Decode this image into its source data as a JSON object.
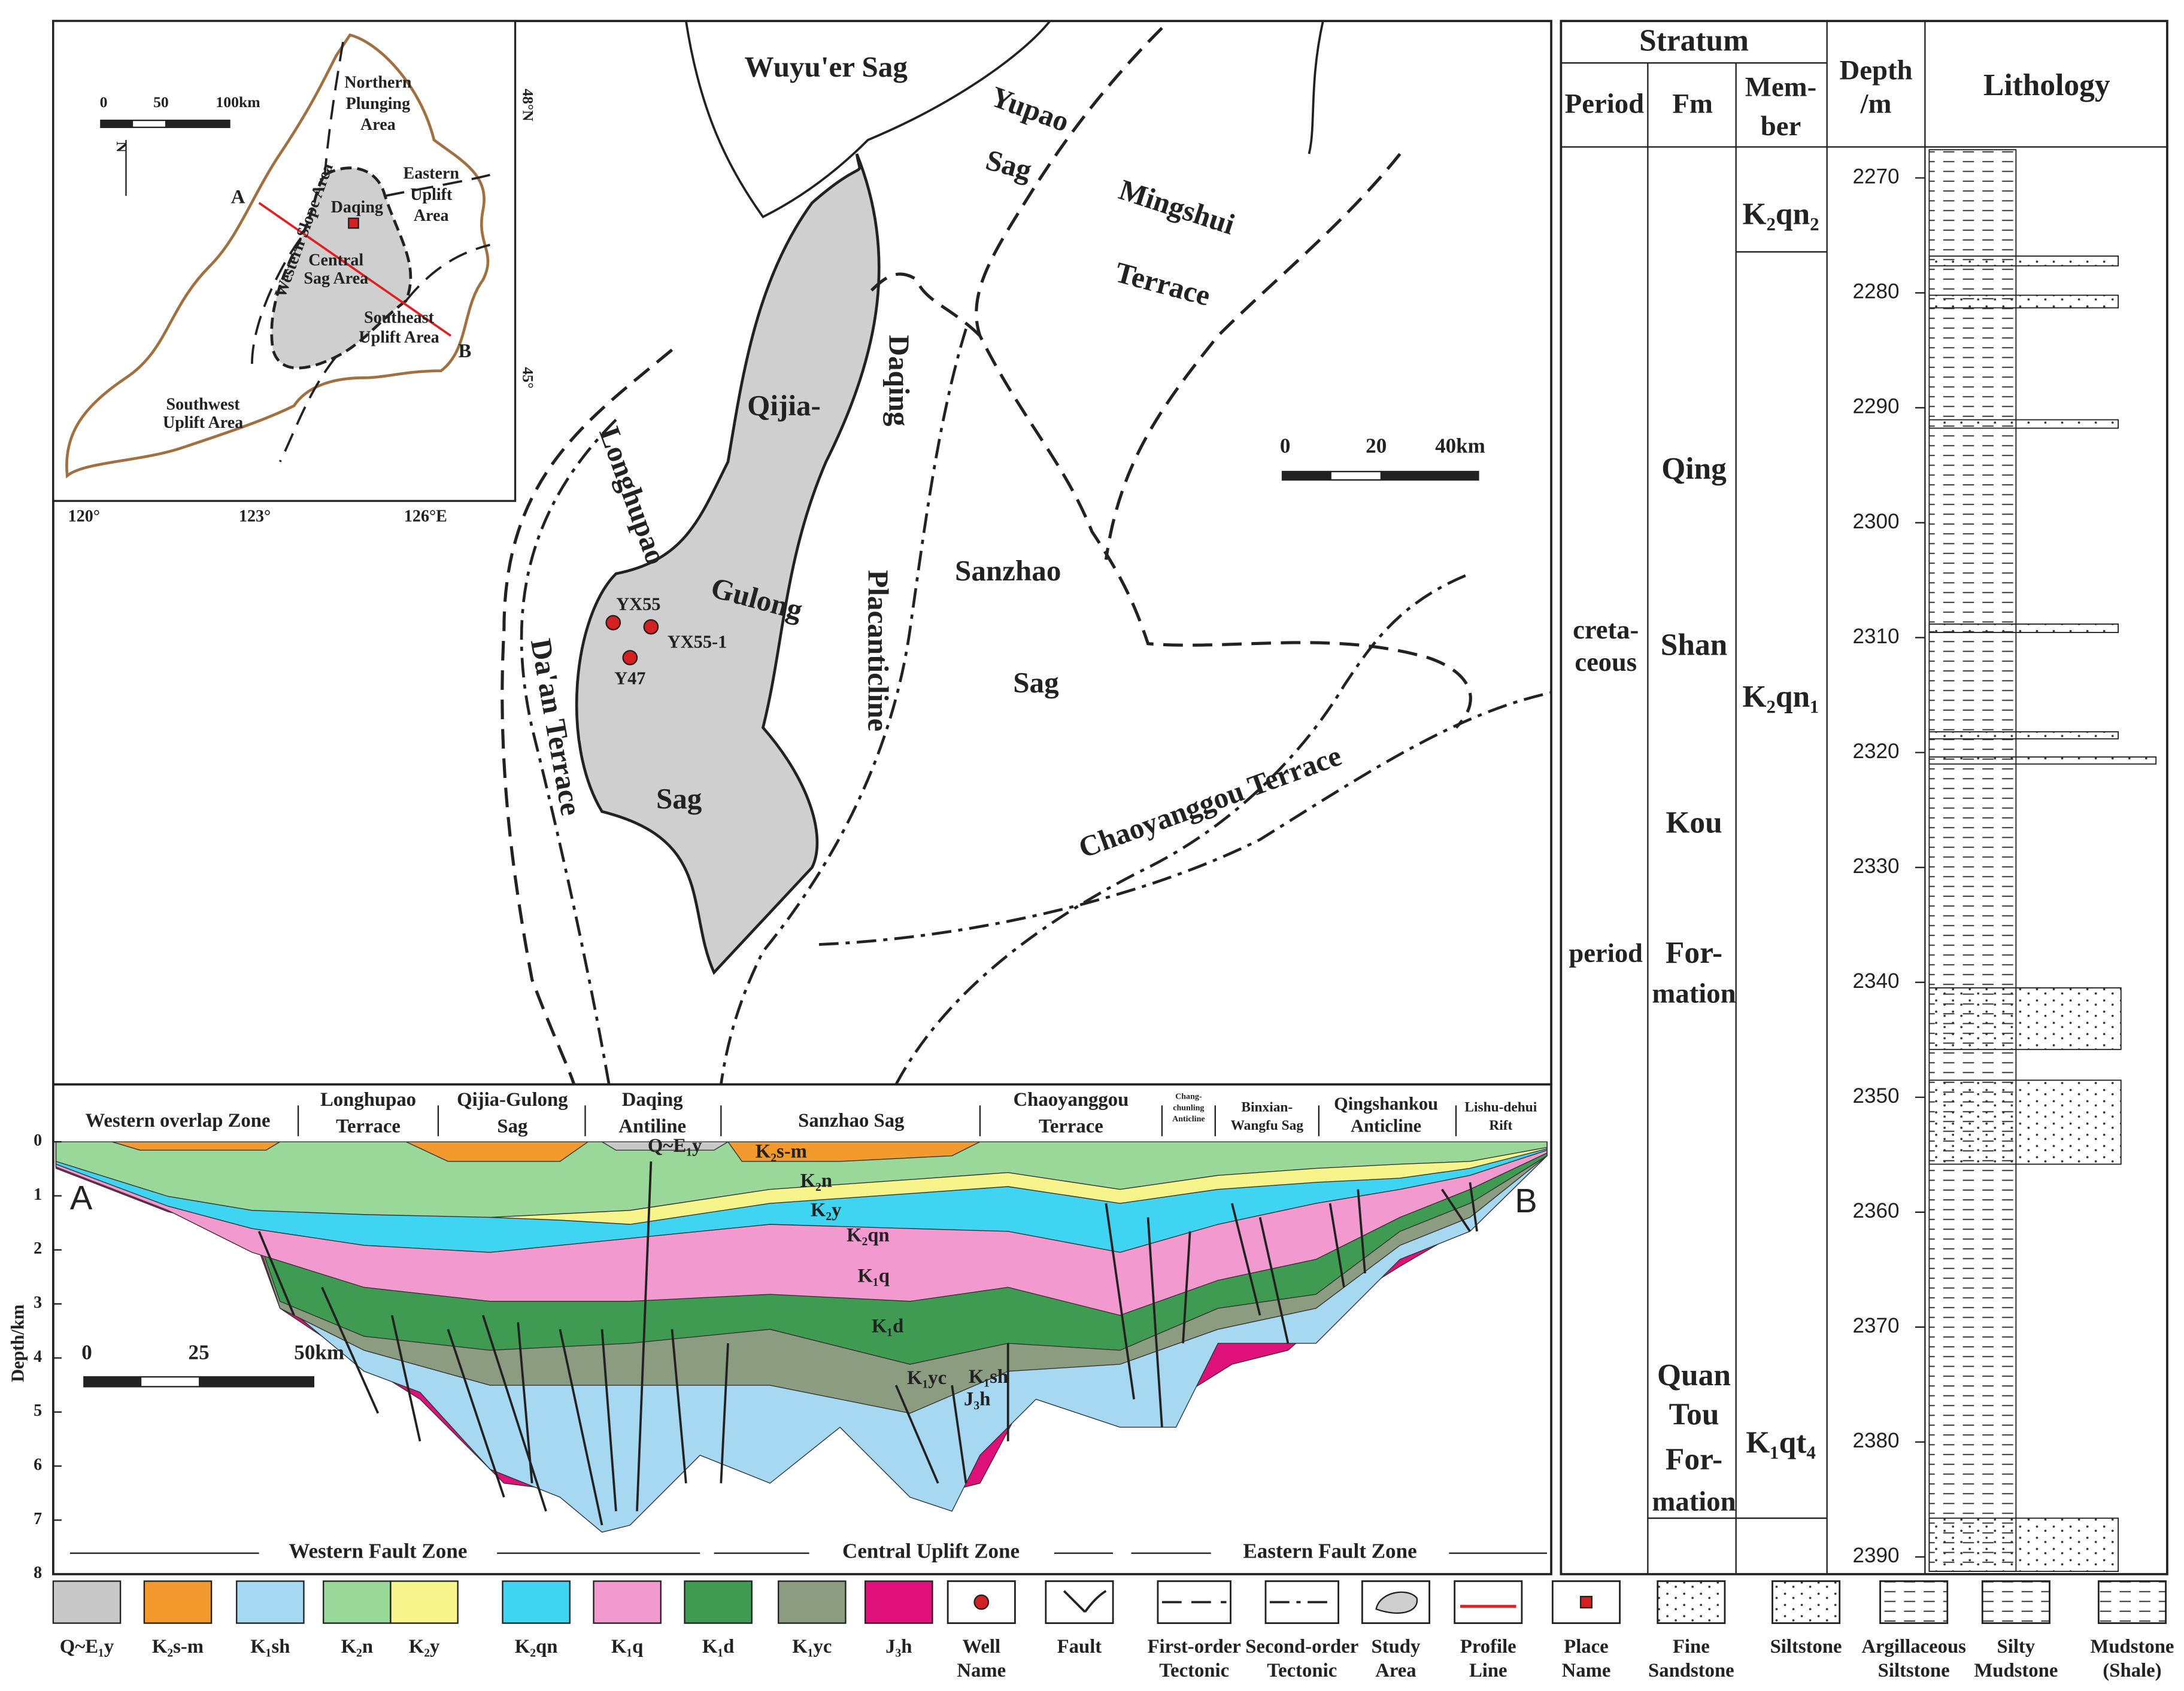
{
  "inset": {
    "scale": [
      "0",
      "50",
      "100km"
    ],
    "north": "N",
    "lat": [
      "48°N",
      "45°"
    ],
    "lon": [
      "120°",
      "123°",
      "126°E"
    ],
    "regions": [
      {
        "lines": [
          "Northern",
          "Plunging",
          "Area"
        ]
      },
      {
        "lines": [
          "Eastern",
          "Uplift",
          "Area"
        ]
      },
      {
        "lines": [
          "Western Slope Area"
        ]
      },
      {
        "lines": [
          "Daqing"
        ]
      },
      {
        "lines": [
          "Central",
          "Sag Area"
        ]
      },
      {
        "lines": [
          "Southeast",
          "Uplift Area"
        ]
      },
      {
        "lines": [
          "Southwest",
          "Uplift Area"
        ]
      }
    ],
    "profile_ends": [
      "A",
      "B"
    ]
  },
  "map": {
    "labels": [
      "Wuyu'er Sag",
      "Yupao",
      "Sag",
      "Mingshui",
      "Terrace",
      "Qijia-",
      "Daqing",
      "Placanticline",
      "Longhupao",
      "Gulong",
      "Sanzhao",
      "Sag",
      "Da'an Terrace",
      "Sag",
      "Chaoyanggou Terrace"
    ],
    "wells": [
      "YX55",
      "YX55-1",
      "Y47"
    ],
    "scale": [
      "0",
      "20",
      "40km"
    ]
  },
  "section": {
    "zones": [
      {
        "lines": [
          "Western overlap Zone"
        ]
      },
      {
        "lines": [
          "Longhupao",
          "Terrace"
        ]
      },
      {
        "lines": [
          "Qijia-Gulong",
          "Sag"
        ]
      },
      {
        "lines": [
          "Daqing",
          "Antiline"
        ]
      },
      {
        "lines": [
          "Sanzhao Sag"
        ]
      },
      {
        "lines": [
          "Chaoyanggou",
          "Terrace"
        ]
      },
      {
        "lines": [
          "Chang-",
          "chunling",
          "Anticline"
        ]
      },
      {
        "lines": [
          "Binxian-",
          "Wangfu Sag"
        ]
      },
      {
        "lines": [
          "Qingshankou",
          "Anticline"
        ]
      },
      {
        "lines": [
          "Lishu-dehui",
          "Rift"
        ]
      }
    ],
    "units": [
      "Q~E₁y",
      "K₂s-m",
      "K₂n",
      "K₂y",
      "K₂qn",
      "K₁q",
      "K₁d",
      "K₁yc",
      "K₁sh",
      "J₃h"
    ],
    "ends": [
      "A",
      "B"
    ],
    "y_label": "Depth/km",
    "ylim": [
      0,
      8
    ],
    "yticks": [
      0,
      1,
      2,
      3,
      4,
      5,
      6,
      7,
      8
    ],
    "scale": [
      "0",
      "25",
      "50km"
    ],
    "fault_zones": [
      "Western Fault Zone",
      "Central Uplift Zone",
      "Eastern Fault Zone"
    ]
  },
  "legend": [
    {
      "lines": [
        "Q~E₁y"
      ],
      "color": "#c8c8c8"
    },
    {
      "lines": [
        "K₂s-m"
      ],
      "color": "#f39a2e"
    },
    {
      "lines": [
        "K₁sh"
      ],
      "color": "#a6d8f2"
    },
    {
      "lines": [
        "K₂n"
      ],
      "color": "#9ad89a"
    },
    {
      "lines": [
        "K₂y"
      ],
      "color": "#f7f48c"
    },
    {
      "lines": [
        "K₂qn"
      ],
      "color": "#3fd5f2"
    },
    {
      "lines": [
        "K₁q"
      ],
      "color": "#f29ad0"
    },
    {
      "lines": [
        "K₁d"
      ],
      "color": "#3f9a52"
    },
    {
      "lines": [
        "K₁yc"
      ],
      "color": "#8c9c80"
    },
    {
      "lines": [
        "J₃h"
      ],
      "color": "#e0107a"
    },
    {
      "lines": [
        "Well",
        "Name"
      ]
    },
    {
      "lines": [
        "Fault"
      ]
    },
    {
      "lines": [
        "First-order",
        "Tectonic"
      ]
    },
    {
      "lines": [
        "Second-order",
        "Tectonic"
      ]
    },
    {
      "lines": [
        "Study",
        "Area"
      ]
    },
    {
      "lines": [
        "Profile",
        "Line"
      ]
    },
    {
      "lines": [
        "Place",
        "Name"
      ]
    },
    {
      "lines": [
        "Fine",
        "Sandstone"
      ]
    },
    {
      "lines": [
        "Siltstone"
      ]
    },
    {
      "lines": [
        "Argillaceous",
        "Siltstone"
      ]
    },
    {
      "lines": [
        "Silty",
        "Mudstone"
      ]
    },
    {
      "lines": [
        "Mudstone",
        "(Shale)"
      ]
    }
  ],
  "column": {
    "header": {
      "stratum": "Stratum",
      "period": "Period",
      "fm": "Fm",
      "member": [
        "Mem-",
        "ber"
      ],
      "depth": [
        "Depth",
        "/m"
      ],
      "lithology": "Lithology"
    },
    "period": [
      "creta-",
      "ceous",
      "period"
    ],
    "formations": [
      [
        "Qing",
        "Shan",
        "Kou",
        "For-",
        "mation"
      ],
      [
        "Quan",
        "Tou",
        "For-",
        "mation"
      ]
    ],
    "members": [
      "K₂qn₂",
      "K₂qn₁",
      "K₁qt₄"
    ],
    "ylim": [
      2267.3,
      2391.5
    ],
    "yticks": [
      2270,
      2280,
      2290,
      2300,
      2310,
      2320,
      2330,
      2340,
      2350,
      2360,
      2370,
      2380,
      2390
    ]
  }
}
